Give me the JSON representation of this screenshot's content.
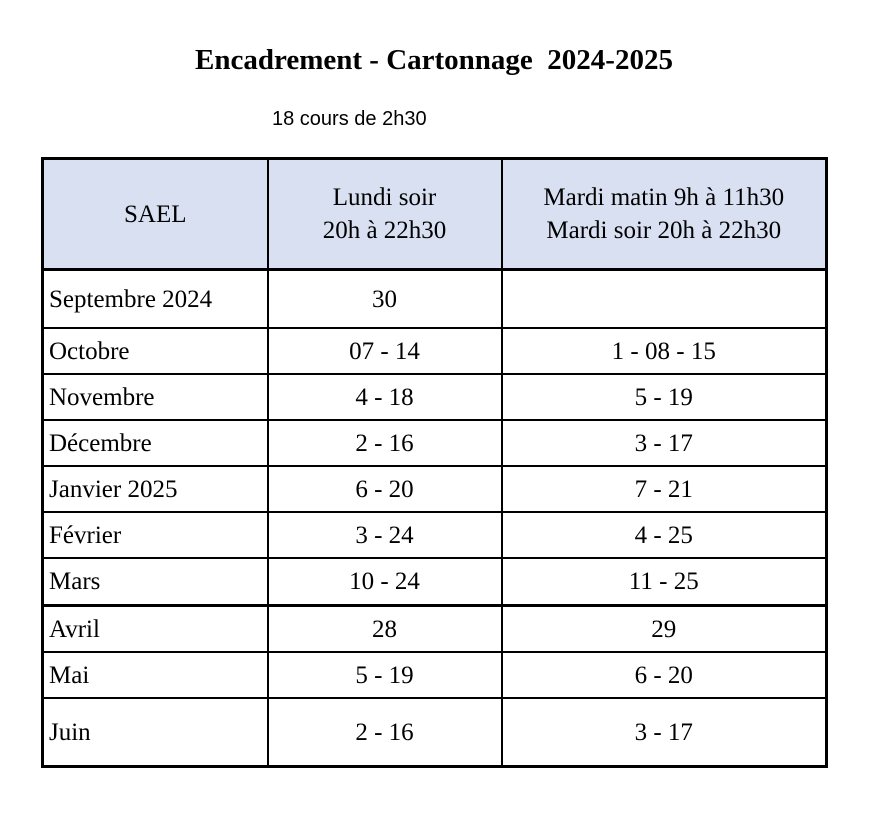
{
  "title": "Encadrement - Cartonnage  2024-2025",
  "subtitle": "18 cours de 2h30",
  "table": {
    "headers": {
      "col1": "SAEL",
      "col2_line1": "Lundi soir",
      "col2_line2": "20h à 22h30",
      "col3_line1": "Mardi matin 9h à 11h30",
      "col3_line2": "Mardi soir 20h à 22h30"
    },
    "rows": [
      {
        "month": "Septembre 2024",
        "lundi": "30",
        "mardi": ""
      },
      {
        "month": "Octobre",
        "lundi": "07 - 14",
        "mardi": "1 - 08 - 15"
      },
      {
        "month": "Novembre",
        "lundi": "4 - 18",
        "mardi": "5 - 19"
      },
      {
        "month": "Décembre",
        "lundi": "2 - 16",
        "mardi": "3 - 17"
      },
      {
        "month": "Janvier 2025",
        "lundi": "6 - 20",
        "mardi": "7 - 21"
      },
      {
        "month": "Février",
        "lundi": "3 - 24",
        "mardi": "4 - 25"
      },
      {
        "month": "Mars",
        "lundi": "10 - 24",
        "mardi": "11 - 25"
      },
      {
        "month": "Avril",
        "lundi": "28",
        "mardi": "29"
      },
      {
        "month": "Mai",
        "lundi": "5 - 19",
        "mardi": "6 - 20"
      },
      {
        "month": "Juin",
        "lundi": "2 - 16",
        "mardi": "3 - 17"
      }
    ]
  }
}
